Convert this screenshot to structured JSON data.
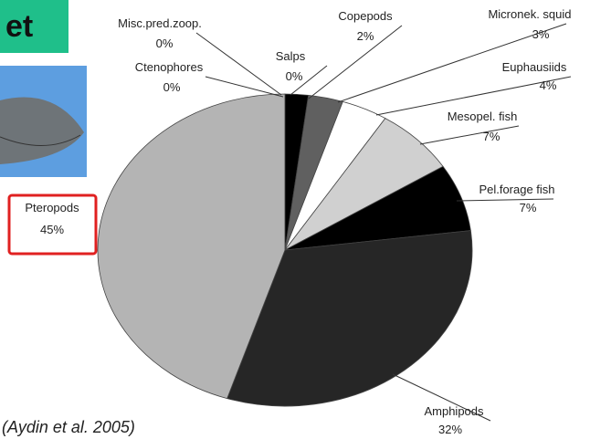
{
  "header": {
    "title": "et",
    "citation": "(Aydin et al. 2005)"
  },
  "chart_data": {
    "type": "pie",
    "categories": [
      "Misc.pred.zoop.",
      "Ctenophores",
      "Salps",
      "Copepods",
      "Micronek. squid",
      "Euphausiids",
      "Mesopel. fish",
      "Pel.forage fish",
      "Amphipods",
      "Pteropods"
    ],
    "values": [
      0,
      0,
      0,
      2,
      3,
      4,
      7,
      7,
      32,
      45
    ],
    "value_labels": [
      "0%",
      "0%",
      "0%",
      "2%",
      "3%",
      "4%",
      "7%",
      "7%",
      "32%",
      "45%"
    ],
    "colors": [
      "#f2c9a0",
      "#7a3a1a",
      "#ffffff",
      "#000000",
      "#606060",
      "#ffffff",
      "#d0d0d0",
      "#000000",
      "#262626",
      "#b4b4b4"
    ]
  }
}
